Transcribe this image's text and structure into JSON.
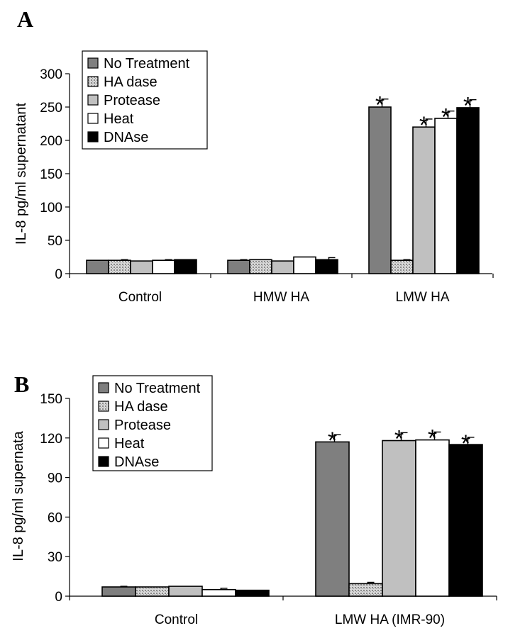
{
  "chart_data": [
    {
      "type": "bar",
      "panel": "A",
      "ylabel": "IL-8 pg/ml supernatant",
      "xlabel": "",
      "ylim": [
        0,
        300
      ],
      "yticks": [
        0,
        50,
        100,
        150,
        200,
        250,
        300
      ],
      "categories": [
        "Control",
        "HMW HA",
        "LMW HA"
      ],
      "legend_position": "top-left",
      "series": [
        {
          "name": "No Treatment",
          "fill": "#7f7f7f",
          "values": [
            20,
            20,
            250
          ],
          "errors": [
            0,
            1,
            12
          ],
          "significant": [
            false,
            false,
            true
          ]
        },
        {
          "name": "HA dase",
          "fill": "pattern-dots",
          "values": [
            20,
            21,
            20
          ],
          "errors": [
            1,
            0,
            1
          ],
          "significant": [
            false,
            false,
            false
          ]
        },
        {
          "name": "Protease",
          "fill": "#c0c0c0",
          "values": [
            19,
            19,
            220
          ],
          "errors": [
            0,
            0,
            12
          ],
          "significant": [
            false,
            false,
            true
          ]
        },
        {
          "name": "Heat",
          "fill": "#ffffff",
          "values": [
            20,
            25,
            233
          ],
          "errors": [
            1,
            0,
            11
          ],
          "significant": [
            false,
            false,
            true
          ]
        },
        {
          "name": "DNAse",
          "fill": "#000000",
          "values": [
            21,
            21,
            249
          ],
          "errors": [
            0,
            3,
            12
          ],
          "significant": [
            false,
            false,
            true
          ]
        }
      ]
    },
    {
      "type": "bar",
      "panel": "B",
      "ylabel": "IL-8 pg/ml supernata",
      "xlabel": "",
      "ylim": [
        0,
        150
      ],
      "yticks": [
        0,
        30,
        60,
        90,
        120,
        150
      ],
      "categories": [
        "Control",
        "LMW HA (IMR-90)"
      ],
      "legend_position": "top-left",
      "series": [
        {
          "name": "No Treatment",
          "fill": "#7f7f7f",
          "values": [
            7,
            117
          ],
          "errors": [
            0.5,
            5.5
          ],
          "significant": [
            false,
            true
          ]
        },
        {
          "name": "HA dase",
          "fill": "pattern-dots",
          "values": [
            7,
            9.5
          ],
          "errors": [
            0,
            1
          ],
          "significant": [
            false,
            false
          ]
        },
        {
          "name": "Protease",
          "fill": "#c0c0c0",
          "values": [
            7.5,
            118
          ],
          "errors": [
            0,
            6
          ],
          "significant": [
            false,
            true
          ]
        },
        {
          "name": "Heat",
          "fill": "#ffffff",
          "values": [
            5,
            118.5
          ],
          "errors": [
            1,
            6
          ],
          "significant": [
            false,
            true
          ]
        },
        {
          "name": "DNAse",
          "fill": "#000000",
          "values": [
            4.5,
            115
          ],
          "errors": [
            0,
            5.5
          ],
          "significant": [
            false,
            true
          ]
        }
      ]
    }
  ],
  "significance_marker": "*"
}
